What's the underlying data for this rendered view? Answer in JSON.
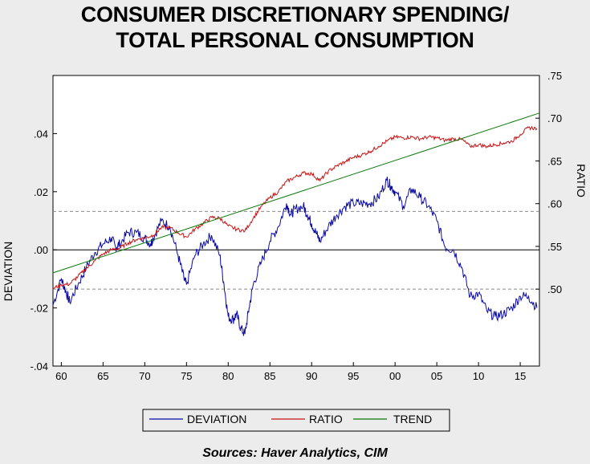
{
  "title_line1": "CONSUMER DISCRETIONARY SPENDING/",
  "title_line2": "TOTAL PERSONAL CONSUMPTION",
  "source": "Sources:  Haver Analytics, CIM",
  "chart_data": {
    "type": "line",
    "x_range": [
      1959,
      2017.3
    ],
    "x_ticks": [
      "60",
      "65",
      "70",
      "75",
      "80",
      "85",
      "90",
      "95",
      "00",
      "05",
      "10",
      "15"
    ],
    "left_axis": {
      "label": "DEVIATION",
      "range": [
        -0.04,
        0.06
      ],
      "ticks": [
        ".04",
        ".02",
        ".00",
        "-.02",
        "-.04"
      ]
    },
    "right_axis": {
      "label": "RATIO",
      "range": [
        0.41,
        0.75
      ],
      "ticks": [
        ".75",
        ".70",
        ".65",
        ".60",
        ".55",
        ".50"
      ]
    },
    "reference_lines": [
      {
        "axis": "left",
        "value": 0.0,
        "style": "solid"
      },
      {
        "axis": "left",
        "value": 0.0132,
        "style": "dashed"
      },
      {
        "axis": "left",
        "value": -0.0135,
        "style": "dashed"
      }
    ],
    "legend_placement": "bottom",
    "series": [
      {
        "name": "DEVIATION",
        "axis": "left",
        "color": "#0a0aa6",
        "points": [
          [
            1959.0,
            -0.019
          ],
          [
            1960.0,
            -0.01
          ],
          [
            1960.5,
            -0.014
          ],
          [
            1961.0,
            -0.018
          ],
          [
            1962.0,
            -0.012
          ],
          [
            1963.0,
            -0.006
          ],
          [
            1964.0,
            -0.001
          ],
          [
            1965.0,
            0.002
          ],
          [
            1966.0,
            0.004
          ],
          [
            1966.5,
            0.001
          ],
          [
            1967.0,
            0.002
          ],
          [
            1968.0,
            0.006
          ],
          [
            1969.0,
            0.006
          ],
          [
            1970.0,
            0.004
          ],
          [
            1970.7,
            0.002
          ],
          [
            1971.0,
            0.004
          ],
          [
            1972.0,
            0.01
          ],
          [
            1973.0,
            0.008
          ],
          [
            1974.0,
            -0.002
          ],
          [
            1974.7,
            -0.01
          ],
          [
            1975.0,
            -0.012
          ],
          [
            1976.0,
            -0.002
          ],
          [
            1977.0,
            0.002
          ],
          [
            1978.0,
            0.005
          ],
          [
            1979.0,
            -0.002
          ],
          [
            1979.5,
            -0.012
          ],
          [
            1980.0,
            -0.023
          ],
          [
            1980.6,
            -0.024
          ],
          [
            1981.0,
            -0.022
          ],
          [
            1981.5,
            -0.027
          ],
          [
            1982.0,
            -0.029
          ],
          [
            1982.5,
            -0.02
          ],
          [
            1983.0,
            -0.012
          ],
          [
            1984.0,
            -0.004
          ],
          [
            1985.0,
            0.003
          ],
          [
            1986.0,
            0.008
          ],
          [
            1987.0,
            0.016
          ],
          [
            1987.5,
            0.012
          ],
          [
            1988.0,
            0.014
          ],
          [
            1989.0,
            0.015
          ],
          [
            1989.5,
            0.012
          ],
          [
            1990.0,
            0.009
          ],
          [
            1990.5,
            0.006
          ],
          [
            1991.0,
            0.003
          ],
          [
            1992.0,
            0.008
          ],
          [
            1993.0,
            0.012
          ],
          [
            1994.0,
            0.015
          ],
          [
            1995.0,
            0.016
          ],
          [
            1996.0,
            0.016
          ],
          [
            1997.0,
            0.016
          ],
          [
            1998.0,
            0.018
          ],
          [
            1999.0,
            0.024
          ],
          [
            1999.5,
            0.022
          ],
          [
            2000.0,
            0.02
          ],
          [
            2001.0,
            0.015
          ],
          [
            2002.0,
            0.021
          ],
          [
            2003.0,
            0.018
          ],
          [
            2004.0,
            0.015
          ],
          [
            2005.0,
            0.01
          ],
          [
            2006.0,
            0.001
          ],
          [
            2007.0,
            0.0
          ],
          [
            2008.0,
            -0.006
          ],
          [
            2009.0,
            -0.016
          ],
          [
            2010.0,
            -0.015
          ],
          [
            2011.0,
            -0.021
          ],
          [
            2012.0,
            -0.023
          ],
          [
            2013.0,
            -0.022
          ],
          [
            2014.0,
            -0.02
          ],
          [
            2015.0,
            -0.016
          ],
          [
            2016.0,
            -0.016
          ],
          [
            2017.0,
            -0.02
          ]
        ]
      },
      {
        "name": "RATIO",
        "axis": "right",
        "color": "#c81414",
        "points": [
          [
            1959.0,
            0.501
          ],
          [
            1960.0,
            0.505
          ],
          [
            1961.0,
            0.506
          ],
          [
            1962.0,
            0.515
          ],
          [
            1963.0,
            0.524
          ],
          [
            1964.0,
            0.533
          ],
          [
            1965.0,
            0.541
          ],
          [
            1966.0,
            0.546
          ],
          [
            1967.0,
            0.548
          ],
          [
            1968.0,
            0.554
          ],
          [
            1969.0,
            0.558
          ],
          [
            1970.0,
            0.56
          ],
          [
            1971.0,
            0.563
          ],
          [
            1972.0,
            0.572
          ],
          [
            1973.0,
            0.572
          ],
          [
            1974.0,
            0.566
          ],
          [
            1975.0,
            0.561
          ],
          [
            1976.0,
            0.57
          ],
          [
            1977.0,
            0.577
          ],
          [
            1978.0,
            0.584
          ],
          [
            1979.0,
            0.583
          ],
          [
            1980.0,
            0.574
          ],
          [
            1981.0,
            0.57
          ],
          [
            1982.0,
            0.568
          ],
          [
            1983.0,
            0.583
          ],
          [
            1984.0,
            0.597
          ],
          [
            1985.0,
            0.607
          ],
          [
            1986.0,
            0.614
          ],
          [
            1987.0,
            0.626
          ],
          [
            1988.0,
            0.631
          ],
          [
            1989.0,
            0.636
          ],
          [
            1990.0,
            0.635
          ],
          [
            1991.0,
            0.627
          ],
          [
            1992.0,
            0.638
          ],
          [
            1993.0,
            0.644
          ],
          [
            1994.0,
            0.649
          ],
          [
            1995.0,
            0.654
          ],
          [
            1996.0,
            0.657
          ],
          [
            1997.0,
            0.661
          ],
          [
            1998.0,
            0.667
          ],
          [
            1999.0,
            0.673
          ],
          [
            2000.0,
            0.678
          ],
          [
            2001.0,
            0.677
          ],
          [
            2002.0,
            0.678
          ],
          [
            2003.0,
            0.676
          ],
          [
            2004.0,
            0.678
          ],
          [
            2005.0,
            0.677
          ],
          [
            2006.0,
            0.674
          ],
          [
            2007.0,
            0.676
          ],
          [
            2008.0,
            0.675
          ],
          [
            2009.0,
            0.667
          ],
          [
            2010.0,
            0.669
          ],
          [
            2011.0,
            0.667
          ],
          [
            2012.0,
            0.669
          ],
          [
            2013.0,
            0.671
          ],
          [
            2014.0,
            0.673
          ],
          [
            2015.0,
            0.681
          ],
          [
            2016.0,
            0.689
          ],
          [
            2017.0,
            0.688
          ]
        ]
      },
      {
        "name": "TREND",
        "axis": "right",
        "color": "#0a780a",
        "points": [
          [
            1959.0,
            0.519
          ],
          [
            2017.3,
            0.706
          ]
        ]
      }
    ]
  }
}
